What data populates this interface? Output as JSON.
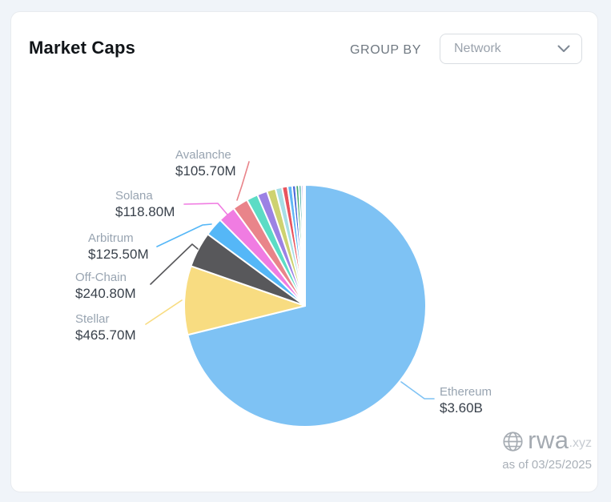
{
  "page": {
    "background": "#F0F4F9",
    "card_background": "#FFFFFF"
  },
  "header": {
    "title": "Market Caps",
    "group_by_label": "GROUP BY",
    "dropdown": {
      "value": "Network",
      "icon": "chevron-down-icon"
    }
  },
  "footer": {
    "logo_icon": "globe-icon",
    "brand": "rwa",
    "brand_suffix": ".xyz",
    "as_of": "as of 03/25/2025"
  },
  "chart_data": {
    "type": "pie",
    "title": "Market Caps",
    "group_by": "Network",
    "start_angle_deg": 0,
    "direction": "clockwise",
    "legend": "none",
    "value_unit": "USD",
    "slices": [
      {
        "label": "Ethereum",
        "display_value": "$3.60B",
        "value_musd": 3600,
        "color": "#7EC2F4",
        "labeled": true
      },
      {
        "label": "Stellar",
        "display_value": "$465.70M",
        "value_musd": 465.7,
        "color": "#F8DC81",
        "labeled": true
      },
      {
        "label": "Off-Chain",
        "display_value": "$240.80M",
        "value_musd": 240.8,
        "color": "#58585B",
        "labeled": true
      },
      {
        "label": "Arbitrum",
        "display_value": "$125.50M",
        "value_musd": 125.5,
        "color": "#55B7F7",
        "labeled": true
      },
      {
        "label": "Solana",
        "display_value": "$118.80M",
        "value_musd": 118.8,
        "color": "#F07CE2",
        "labeled": true
      },
      {
        "label": "Avalanche",
        "display_value": "$105.70M",
        "value_musd": 105.7,
        "color": "#E9848A",
        "labeled": true
      },
      {
        "label": "",
        "value_musd": 77,
        "estimated": true,
        "color": "#5CDCC5",
        "labeled": false
      },
      {
        "label": "",
        "value_musd": 68,
        "estimated": true,
        "color": "#9C82E4",
        "labeled": false
      },
      {
        "label": "",
        "value_musd": 59,
        "estimated": true,
        "color": "#CED271",
        "labeled": false
      },
      {
        "label": "",
        "value_musd": 45,
        "estimated": true,
        "color": "#A7DFE6",
        "labeled": false
      },
      {
        "label": "",
        "value_musd": 37,
        "estimated": true,
        "color": "#E8545E",
        "labeled": false
      },
      {
        "label": "",
        "value_musd": 31,
        "estimated": true,
        "color": "#60B7F5",
        "labeled": false
      },
      {
        "label": "",
        "value_musd": 24,
        "estimated": true,
        "color": "#4A69D9",
        "labeled": false
      },
      {
        "label": "",
        "value_musd": 21,
        "estimated": true,
        "color": "#46A96C",
        "labeled": false
      },
      {
        "label": "",
        "value_musd": 17,
        "estimated": true,
        "color": "#2FA096",
        "labeled": false
      },
      {
        "label": "",
        "value_musd": 14,
        "estimated": true,
        "color": "#B3A5EA",
        "labeled": false
      },
      {
        "label": "",
        "value_musd": 11,
        "estimated": true,
        "color": "#82D5E8",
        "labeled": false
      }
    ]
  }
}
